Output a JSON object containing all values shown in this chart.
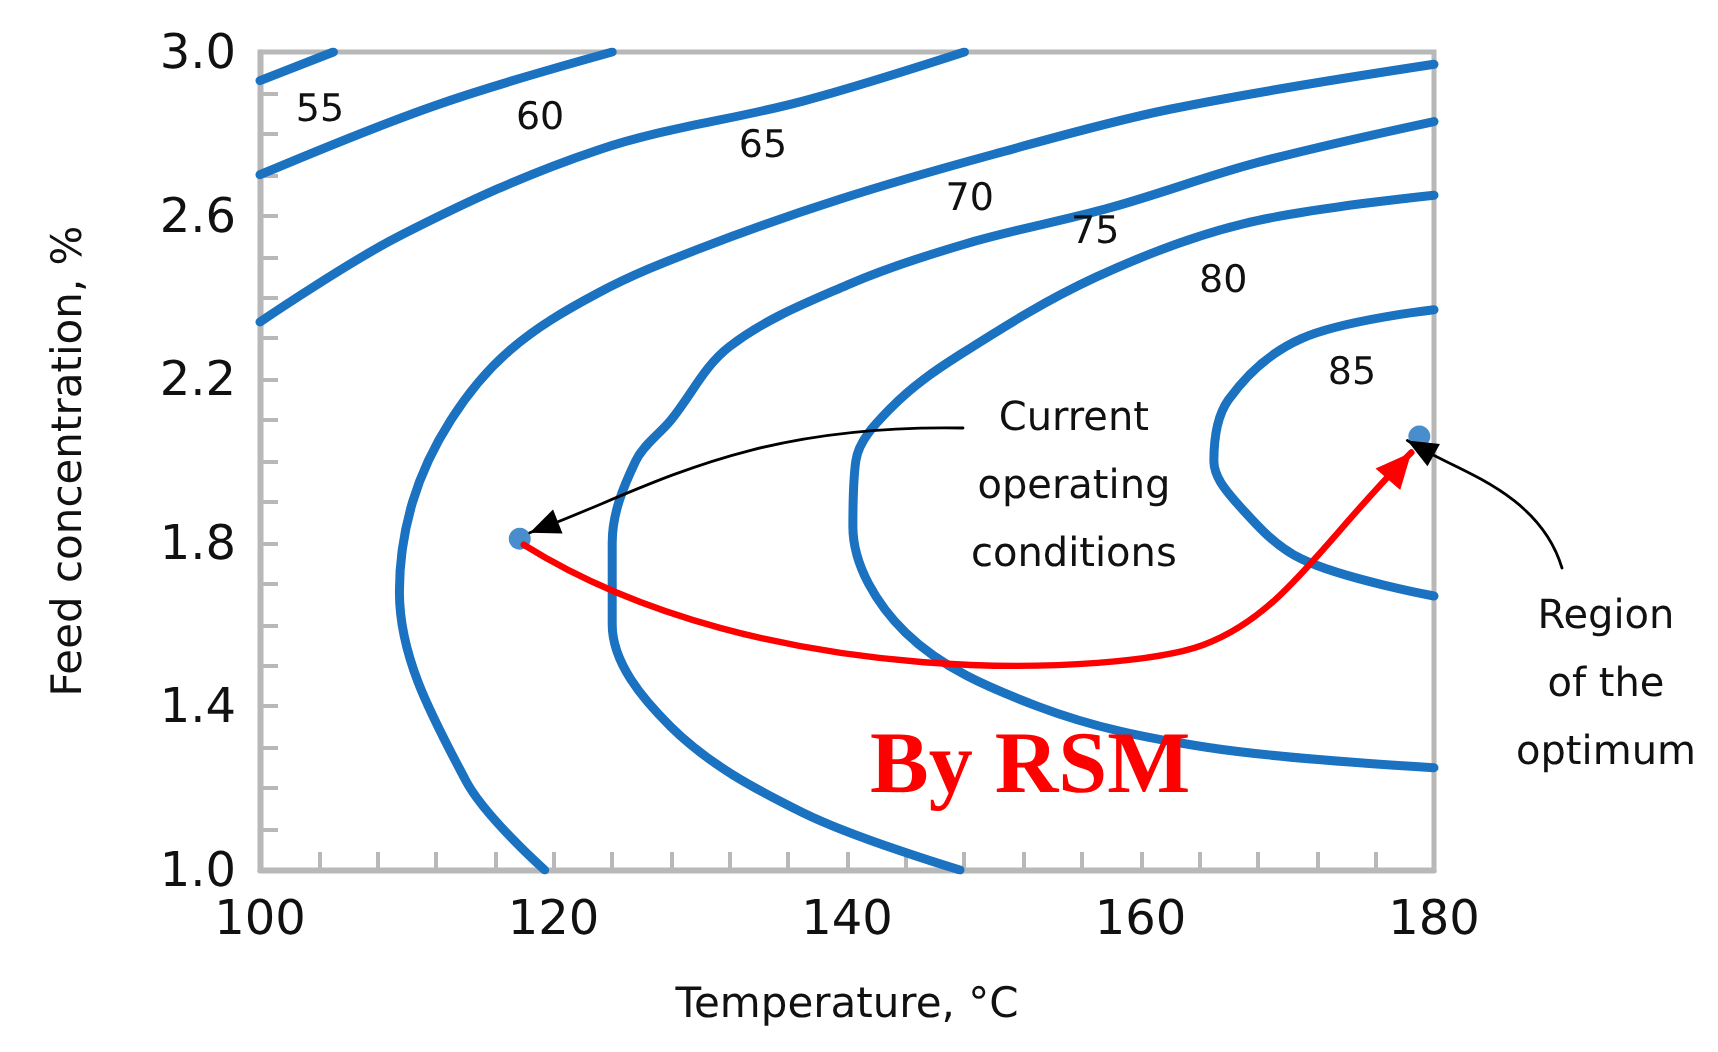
{
  "chart_data": {
    "type": "line",
    "xlabel": "Temperature, °C",
    "ylabel": "Feed concentration, %",
    "xlim": [
      100,
      180
    ],
    "xticks": [
      100,
      {
        "value": 104,
        "label": null
      },
      {
        "value": 108,
        "label": null
      },
      {
        "value": 112,
        "label": null
      },
      {
        "value": 116,
        "label": null
      },
      120,
      {
        "value": 124,
        "label": null
      },
      {
        "value": 128,
        "label": null
      },
      {
        "value": 132,
        "label": null
      },
      {
        "value": 136,
        "label": null
      },
      140,
      {
        "value": 144,
        "label": null
      },
      {
        "value": 148,
        "label": null
      },
      {
        "value": 152,
        "label": null
      },
      {
        "value": 156,
        "label": null
      },
      160,
      {
        "value": 164,
        "label": null
      },
      {
        "value": 168,
        "label": null
      },
      {
        "value": 172,
        "label": null
      },
      {
        "value": 176,
        "label": null
      },
      180
    ],
    "ylim": [
      1.0,
      3.0
    ],
    "yticks": [
      {
        "value": 1,
        "label": "1.0"
      },
      {
        "value": 1.1,
        "label": null
      },
      {
        "value": 1.2,
        "label": null
      },
      {
        "value": 1.3,
        "label": null
      },
      1.4,
      {
        "value": 1.5,
        "label": null
      },
      {
        "value": 1.6,
        "label": null
      },
      {
        "value": 1.7,
        "label": null
      },
      1.8,
      {
        "value": 1.9,
        "label": null
      },
      {
        "value": 2.0,
        "label": null
      },
      {
        "value": 2.1,
        "label": null
      },
      2.2,
      {
        "value": 2.3,
        "label": null
      },
      {
        "value": 2.4,
        "label": null
      },
      {
        "value": 2.5,
        "label": null
      },
      2.6,
      {
        "value": 2.7,
        "label": null
      },
      {
        "value": 2.8,
        "label": null
      },
      {
        "value": 2.9,
        "label": null
      },
      {
        "value": 3,
        "label": "3.0"
      }
    ],
    "grid": false,
    "legend": false,
    "marker": "none",
    "line_style": "solid",
    "series": [
      {
        "name": "55",
        "color": "#1a72c0",
        "x": [
          100,
          105
        ],
        "values": [
          2.93,
          3.0
        ]
      },
      {
        "name": "60",
        "color": "#1a72c0",
        "x": [
          100,
          112,
          124
        ],
        "values": [
          2.7,
          2.87,
          3.0
        ]
      },
      {
        "name": "65",
        "color": "#1a72c0",
        "x": [
          100,
          109.5,
          123,
          137,
          148
        ],
        "values": [
          2.34,
          2.55,
          2.76,
          2.88,
          3.0
        ]
      },
      {
        "name": "70",
        "color": "#1a72c0",
        "x": [
          119.4,
          114,
          109.5,
          110.4,
          113,
          117,
          123,
          130,
          139.5,
          150,
          162,
          180
        ],
        "values": [
          1.0,
          1.22,
          1.68,
          1.9,
          2.1,
          2.27,
          2.41,
          2.52,
          2.64,
          2.75,
          2.86,
          2.97
        ]
      },
      {
        "name": "75",
        "color": "#1a72c0",
        "x": [
          147.7,
          137,
          128,
          124,
          124,
          125.6,
          128,
          132,
          140,
          148,
          158,
          168,
          180
        ],
        "values": [
          1.0,
          1.14,
          1.35,
          1.6,
          1.8,
          2.0,
          2.1,
          2.28,
          2.43,
          2.53,
          2.62,
          2.73,
          2.83
        ]
      },
      {
        "name": "80",
        "color": "#1a72c0",
        "x": [
          180,
          164.5,
          153,
          144,
          140.4,
          140.6,
          143,
          147.7,
          157,
          167,
          180
        ],
        "values": [
          1.25,
          1.3,
          1.4,
          1.58,
          1.84,
          2.0,
          2.13,
          2.26,
          2.45,
          2.58,
          2.65
        ]
      },
      {
        "name": "85",
        "color": "#1a72c0",
        "x": [
          180,
          171,
          166,
          165,
          166.5,
          171,
          180
        ],
        "values": [
          2.37,
          2.3,
          2.15,
          2.0,
          1.9,
          1.76,
          1.67
        ]
      },
      {
        "type": "scatter",
        "color": "#1a72c0",
        "marker": "circle",
        "x": [
          117.7,
          179
        ],
        "values": [
          1.81,
          2.06
        ]
      }
    ],
    "annotations": [
      {
        "text": "Current operating conditions",
        "x": 117.7,
        "y": 1.81
      },
      {
        "text": "Region of the optimum",
        "x": 179,
        "y": 2.06
      },
      "By RSM"
    ]
  }
}
